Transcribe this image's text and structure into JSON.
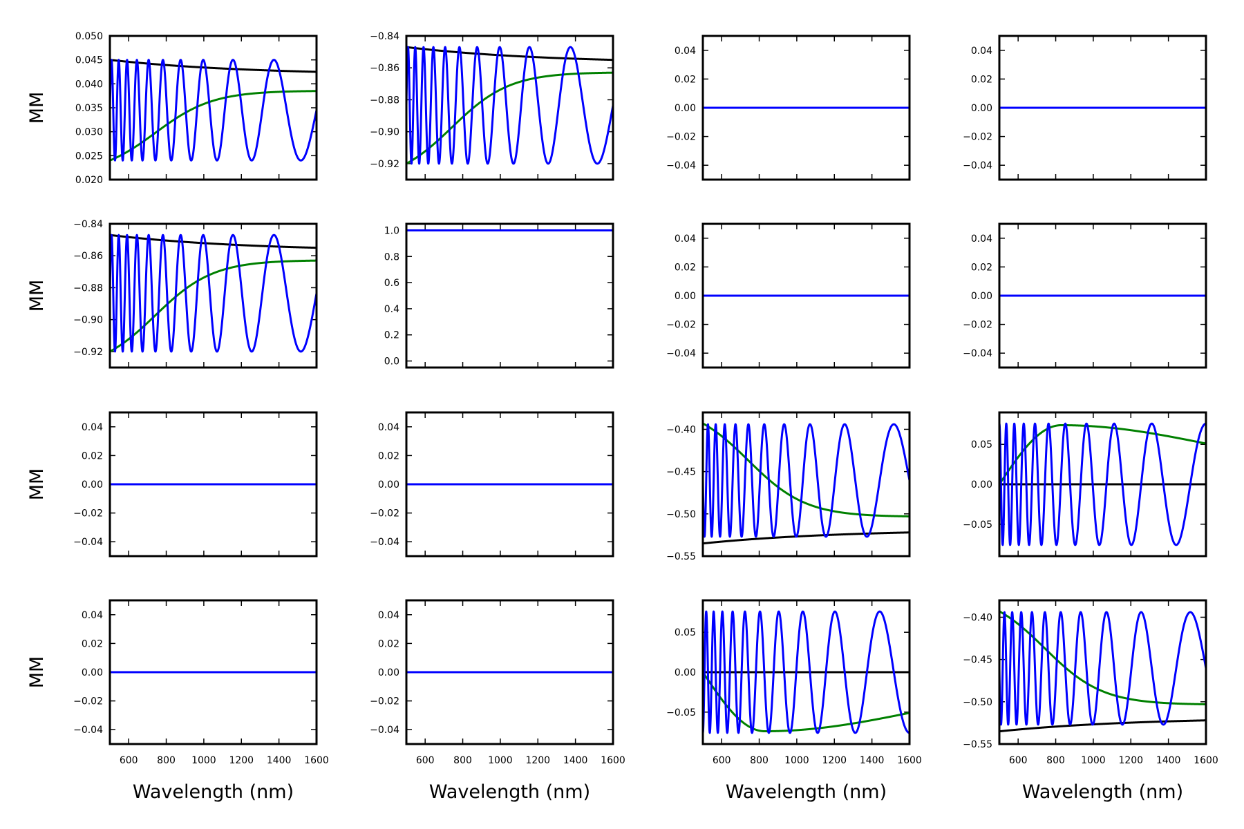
{
  "figure": {
    "xlabel": "Wavelength (nm)",
    "ylabel": "MM",
    "xlim": [
      500,
      1600
    ],
    "xticks": [
      600,
      800,
      1000,
      1200,
      1400,
      1600
    ],
    "colors": {
      "black": "#000000",
      "green": "#008000",
      "blue": "#0000ff"
    }
  },
  "chart_data": [
    {
      "type": "line",
      "row": 0,
      "col": 0,
      "ylim": [
        0.02,
        0.05
      ],
      "yticks": [
        0.02,
        0.025,
        0.03,
        0.035,
        0.04,
        0.045,
        0.05
      ],
      "ytick_decimals": 3,
      "series": [
        {
          "color": "black",
          "kind": "decay",
          "start": 0.045,
          "end": 0.0425
        },
        {
          "color": "green",
          "kind": "sigmoid_rise",
          "start": 0.024,
          "end": 0.0385
        },
        {
          "color": "blue",
          "kind": "oscillation",
          "low": 0.024,
          "high": 0.045,
          "cycles": 10,
          "phase": 0.25
        }
      ]
    },
    {
      "type": "line",
      "row": 0,
      "col": 1,
      "ylim": [
        -0.93,
        -0.84
      ],
      "yticks": [
        -0.92,
        -0.9,
        -0.88,
        -0.86,
        -0.84
      ],
      "ytick_decimals": 2,
      "series": [
        {
          "color": "black",
          "kind": "decay",
          "start": -0.847,
          "end": -0.855
        },
        {
          "color": "green",
          "kind": "sigmoid_rise",
          "start": -0.92,
          "end": -0.863
        },
        {
          "color": "blue",
          "kind": "oscillation",
          "low": -0.92,
          "high": -0.847,
          "cycles": 10,
          "phase": 0.25
        }
      ]
    },
    {
      "type": "line",
      "row": 0,
      "col": 2,
      "ylim": [
        -0.05,
        0.05
      ],
      "yticks": [
        -0.04,
        -0.02,
        0.0,
        0.02,
        0.04
      ],
      "ytick_decimals": 2,
      "series": [
        {
          "color": "blue",
          "kind": "constant",
          "value": 0.0
        }
      ]
    },
    {
      "type": "line",
      "row": 0,
      "col": 3,
      "ylim": [
        -0.05,
        0.05
      ],
      "yticks": [
        -0.04,
        -0.02,
        0.0,
        0.02,
        0.04
      ],
      "ytick_decimals": 2,
      "series": [
        {
          "color": "blue",
          "kind": "constant",
          "value": 0.0
        }
      ]
    },
    {
      "type": "line",
      "row": 1,
      "col": 0,
      "ylim": [
        -0.93,
        -0.84
      ],
      "yticks": [
        -0.92,
        -0.9,
        -0.88,
        -0.86,
        -0.84
      ],
      "ytick_decimals": 2,
      "series": [
        {
          "color": "black",
          "kind": "decay",
          "start": -0.847,
          "end": -0.855
        },
        {
          "color": "green",
          "kind": "sigmoid_rise",
          "start": -0.92,
          "end": -0.863
        },
        {
          "color": "blue",
          "kind": "oscillation",
          "low": -0.92,
          "high": -0.847,
          "cycles": 10,
          "phase": 0.25
        }
      ]
    },
    {
      "type": "line",
      "row": 1,
      "col": 1,
      "ylim": [
        -0.05,
        1.05
      ],
      "yticks": [
        0.0,
        0.2,
        0.4,
        0.6,
        0.8,
        1.0
      ],
      "ytick_decimals": 1,
      "series": [
        {
          "color": "blue",
          "kind": "constant",
          "value": 1.0
        }
      ]
    },
    {
      "type": "line",
      "row": 1,
      "col": 2,
      "ylim": [
        -0.05,
        0.05
      ],
      "yticks": [
        -0.04,
        -0.02,
        0.0,
        0.02,
        0.04
      ],
      "ytick_decimals": 2,
      "series": [
        {
          "color": "blue",
          "kind": "constant",
          "value": 0.0
        }
      ]
    },
    {
      "type": "line",
      "row": 1,
      "col": 3,
      "ylim": [
        -0.05,
        0.05
      ],
      "yticks": [
        -0.04,
        -0.02,
        0.0,
        0.02,
        0.04
      ],
      "ytick_decimals": 2,
      "series": [
        {
          "color": "blue",
          "kind": "constant",
          "value": 0.0
        }
      ]
    },
    {
      "type": "line",
      "row": 2,
      "col": 0,
      "ylim": [
        -0.05,
        0.05
      ],
      "yticks": [
        -0.04,
        -0.02,
        0.0,
        0.02,
        0.04
      ],
      "ytick_decimals": 2,
      "series": [
        {
          "color": "blue",
          "kind": "constant",
          "value": 0.0
        }
      ]
    },
    {
      "type": "line",
      "row": 2,
      "col": 1,
      "ylim": [
        -0.05,
        0.05
      ],
      "yticks": [
        -0.04,
        -0.02,
        0.0,
        0.02,
        0.04
      ],
      "ytick_decimals": 2,
      "series": [
        {
          "color": "blue",
          "kind": "constant",
          "value": 0.0
        }
      ]
    },
    {
      "type": "line",
      "row": 2,
      "col": 2,
      "ylim": [
        -0.55,
        -0.38
      ],
      "yticks": [
        -0.55,
        -0.5,
        -0.45,
        -0.4
      ],
      "ytick_decimals": 2,
      "series": [
        {
          "color": "black",
          "kind": "decay",
          "start": -0.535,
          "end": -0.522
        },
        {
          "color": "green",
          "kind": "sigmoid_fall",
          "start": -0.393,
          "end": -0.503
        },
        {
          "color": "blue",
          "kind": "oscillation",
          "low": -0.527,
          "high": -0.394,
          "cycles": 10,
          "phase": 0.75
        }
      ]
    },
    {
      "type": "line",
      "row": 2,
      "col": 3,
      "ylim": [
        -0.09,
        0.09
      ],
      "yticks": [
        -0.05,
        0.0,
        0.05
      ],
      "ytick_decimals": 2,
      "series": [
        {
          "color": "black",
          "kind": "constant",
          "value": 0.0
        },
        {
          "color": "green",
          "kind": "hump",
          "start": 0.0,
          "peak": 0.074,
          "peak_x": 830,
          "end": 0.051
        },
        {
          "color": "blue",
          "kind": "oscillation",
          "low": -0.076,
          "high": 0.076,
          "cycles": 10,
          "phase": 0.0
        }
      ]
    },
    {
      "type": "line",
      "row": 3,
      "col": 0,
      "ylim": [
        -0.05,
        0.05
      ],
      "yticks": [
        -0.04,
        -0.02,
        0.0,
        0.02,
        0.04
      ],
      "ytick_decimals": 2,
      "series": [
        {
          "color": "blue",
          "kind": "constant",
          "value": 0.0
        }
      ]
    },
    {
      "type": "line",
      "row": 3,
      "col": 1,
      "ylim": [
        -0.05,
        0.05
      ],
      "yticks": [
        -0.04,
        -0.02,
        0.0,
        0.02,
        0.04
      ],
      "ytick_decimals": 2,
      "series": [
        {
          "color": "blue",
          "kind": "constant",
          "value": 0.0
        }
      ]
    },
    {
      "type": "line",
      "row": 3,
      "col": 2,
      "ylim": [
        -0.09,
        0.09
      ],
      "yticks": [
        -0.05,
        0.0,
        0.05
      ],
      "ytick_decimals": 2,
      "series": [
        {
          "color": "black",
          "kind": "constant",
          "value": 0.0
        },
        {
          "color": "green",
          "kind": "dip",
          "start": 0.0,
          "trough": -0.074,
          "trough_x": 830,
          "end": -0.051
        },
        {
          "color": "blue",
          "kind": "oscillation",
          "low": -0.076,
          "high": 0.076,
          "cycles": 10,
          "phase": 0.5
        }
      ]
    },
    {
      "type": "line",
      "row": 3,
      "col": 3,
      "ylim": [
        -0.55,
        -0.38
      ],
      "yticks": [
        -0.55,
        -0.5,
        -0.45,
        -0.4
      ],
      "ytick_decimals": 2,
      "series": [
        {
          "color": "black",
          "kind": "decay",
          "start": -0.535,
          "end": -0.522
        },
        {
          "color": "green",
          "kind": "sigmoid_fall",
          "start": -0.393,
          "end": -0.503
        },
        {
          "color": "blue",
          "kind": "oscillation",
          "low": -0.527,
          "high": -0.394,
          "cycles": 10,
          "phase": 0.75
        }
      ]
    }
  ]
}
